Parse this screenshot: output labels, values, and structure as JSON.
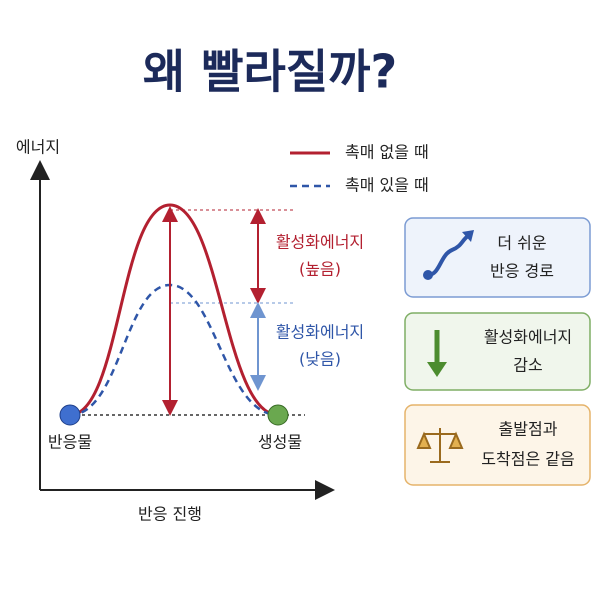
{
  "title": "왜 빨라질까?",
  "axes": {
    "y_label": "에너지",
    "x_label": "반응 진행"
  },
  "legend": [
    {
      "label": "촉매 없을 때"
    },
    {
      "label": "촉매 있을 때"
    }
  ],
  "annotations": {
    "high": {
      "label": "활성화에너지",
      "note": "(높음)"
    },
    "low": {
      "label": "활성화에너지",
      "note": "(낮음)"
    }
  },
  "points": {
    "reactant": "반응물",
    "product": "생성물"
  },
  "cards": [
    {
      "lines": [
        "더 쉬운",
        "반응 경로"
      ]
    },
    {
      "lines": [
        "활성화에너지",
        "감소"
      ]
    },
    {
      "lines": [
        "출발점과",
        "도착점은 같음"
      ]
    }
  ]
}
